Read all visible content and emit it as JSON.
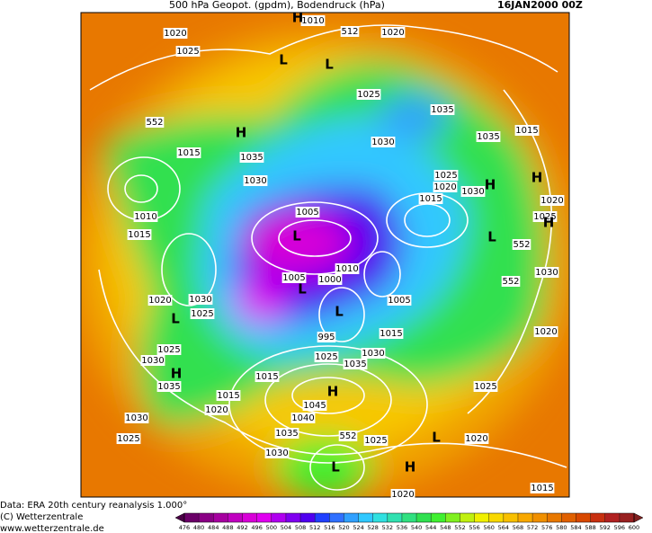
{
  "header": {
    "title": "500 hPa Geopot. (gpdm), Bodendruck (hPa)",
    "date": "16JAN2000 00Z"
  },
  "map": {
    "isobar_labels": [
      1010,
      1020,
      1025,
      1020,
      1025,
      1035,
      1030,
      1035,
      1015,
      1015,
      1035,
      1030,
      1025,
      1020,
      1015,
      1030,
      1020,
      1025,
      1010,
      1015,
      1005,
      1010,
      1000,
      1005,
      1030,
      1020,
      1030,
      1025,
      1005,
      1020,
      995,
      1015,
      1025,
      1030,
      1030,
      1035,
      1025,
      1015,
      1015,
      1035,
      1020,
      1025,
      1045,
      1040,
      1035,
      1030,
      1030,
      1025,
      1025,
      1020,
      1020,
      1015
    ],
    "geopotential_labels": [
      552,
      552,
      552,
      552,
      512
    ],
    "pressure_centers": [
      "L",
      "L",
      "H",
      "H",
      "H",
      "H",
      "H",
      "L",
      "L",
      "L",
      "L",
      "H",
      "H",
      "L",
      "L",
      "H",
      "L"
    ]
  },
  "footer": {
    "lines": [
      "Data: ERA 20th century reanalysis 1.000°",
      "(C) Wetterzentrale",
      "www.wetterzentrale.de"
    ]
  },
  "colorbar": {
    "ticks": [
      476,
      480,
      484,
      488,
      492,
      496,
      500,
      504,
      508,
      512,
      516,
      520,
      524,
      528,
      532,
      536,
      540,
      544,
      548,
      552,
      556,
      560,
      564,
      568,
      572,
      576,
      580,
      584,
      588,
      592,
      596,
      600
    ],
    "under_color": "#4b0046",
    "colors": [
      "#6b0068",
      "#8a0085",
      "#a600a0",
      "#c000c0",
      "#d800d8",
      "#e000f0",
      "#b000f0",
      "#8000f0",
      "#5000f0",
      "#2040ff",
      "#3070ff",
      "#30a0ff",
      "#30c8ff",
      "#30e0e0",
      "#30e0b0",
      "#30e080",
      "#30e050",
      "#40f030",
      "#80f020",
      "#c0f010",
      "#f0f000",
      "#f8d800",
      "#f8c000",
      "#f8a800",
      "#f09000",
      "#e87800",
      "#e06000",
      "#d84800",
      "#c83010",
      "#b02020",
      "#982020"
    ],
    "over_color": "#802020"
  }
}
